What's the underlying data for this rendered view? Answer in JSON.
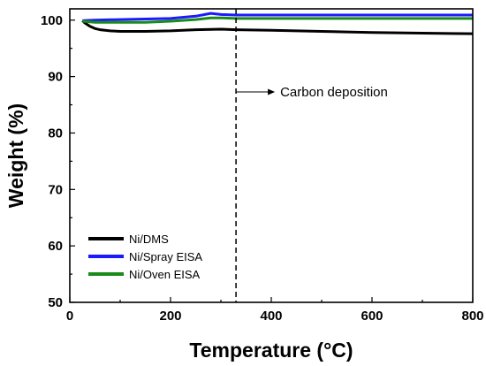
{
  "chart_data": {
    "type": "line",
    "title": "",
    "xlabel": "Temperature (°C)",
    "ylabel": "Weight (%)",
    "xlim": [
      0,
      800
    ],
    "ylim": [
      50,
      102
    ],
    "x_ticks": [
      0,
      200,
      400,
      600,
      800
    ],
    "y_ticks": [
      50,
      60,
      70,
      80,
      90,
      100
    ],
    "grid": false,
    "legend_position": "bottom-left",
    "series": [
      {
        "name": "Ni/DMS",
        "color": "#000000",
        "x": [
          25,
          30,
          40,
          50,
          60,
          80,
          100,
          150,
          200,
          250,
          300,
          330,
          400,
          500,
          600,
          700,
          800
        ],
        "y": [
          99.9,
          99.5,
          98.9,
          98.5,
          98.3,
          98.1,
          98.0,
          98.0,
          98.1,
          98.3,
          98.4,
          98.3,
          98.2,
          98.0,
          97.8,
          97.7,
          97.6
        ]
      },
      {
        "name": "Ni/Spray EISA",
        "color": "#1a1aff",
        "x": [
          25,
          50,
          100,
          150,
          200,
          250,
          280,
          300,
          330,
          400,
          500,
          600,
          700,
          800
        ],
        "y": [
          99.9,
          100.0,
          100.1,
          100.2,
          100.3,
          100.7,
          101.2,
          101.0,
          100.9,
          100.9,
          100.9,
          100.9,
          100.9,
          100.9
        ]
      },
      {
        "name": "Ni/Oven EISA",
        "color": "#1a8a1a",
        "x": [
          25,
          50,
          100,
          150,
          200,
          250,
          280,
          300,
          330,
          400,
          500,
          600,
          700,
          800
        ],
        "y": [
          99.8,
          99.6,
          99.6,
          99.6,
          99.8,
          100.1,
          100.4,
          100.4,
          100.3,
          100.3,
          100.3,
          100.3,
          100.3,
          100.3
        ]
      }
    ],
    "annotations": [
      {
        "text": "Carbon deposition",
        "x": 330,
        "line_style": "dashed-vertical",
        "arrow": "right"
      }
    ]
  }
}
